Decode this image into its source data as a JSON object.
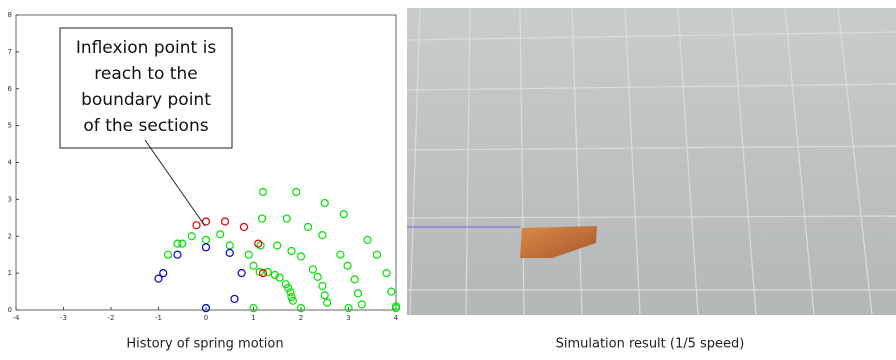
{
  "chart_data": {
    "type": "scatter",
    "xlim": [
      -4,
      4
    ],
    "ylim": [
      0,
      8
    ],
    "xticks": [
      -4,
      -3,
      -2,
      -1,
      0,
      1,
      2,
      3,
      4
    ],
    "yticks": [
      0,
      1,
      2,
      3,
      4,
      5,
      6,
      7,
      8
    ],
    "annotation": [
      "Inflexion point is",
      "reach to the",
      "boundary point",
      "of the sections"
    ],
    "series": [
      {
        "color": "#00e000",
        "x": [
          1.13,
          1.15,
          1.18,
          1.2,
          null,
          1.3,
          1.5,
          1.7,
          1.9,
          null,
          1.45,
          1.8,
          2.15,
          2.5,
          null,
          1.55,
          2.0,
          2.45,
          2.9,
          null,
          1.68,
          2.25,
          2.83,
          3.4,
          null,
          1.73,
          2.35,
          2.98,
          3.6,
          null,
          1.78,
          2.45,
          3.13,
          3.8,
          null,
          1.8,
          2.5,
          3.2,
          3.9,
          null,
          1.83,
          2.55,
          3.28,
          4.0,
          null,
          0,
          1,
          2,
          3,
          4,
          null,
          1.0,
          0.5,
          0,
          -0.5,
          -0.8,
          null,
          0.9,
          0.3,
          -0.3,
          -0.6
        ],
        "y": [
          1.03,
          1.75,
          2.48,
          3.2,
          null,
          1.03,
          1.75,
          2.48,
          3.2,
          null,
          0.95,
          1.6,
          2.25,
          2.9,
          null,
          0.88,
          1.45,
          2.03,
          2.6,
          null,
          0.7,
          1.1,
          1.5,
          1.9,
          null,
          0.6,
          0.9,
          1.2,
          1.5,
          null,
          0.48,
          0.65,
          0.83,
          1.0,
          null,
          0.35,
          0.4,
          0.45,
          0.5,
          null,
          0.25,
          0.2,
          0.15,
          0.1,
          null,
          0.05,
          0.05,
          0.05,
          0.05,
          0.05,
          null,
          1.2,
          1.75,
          1.9,
          1.8,
          1.5,
          null,
          1.5,
          2.05,
          2.0,
          1.8
        ]
      },
      {
        "color": "#e00000",
        "x": [
          1.2,
          1.1,
          0.8,
          0.4,
          0,
          -0.2
        ],
        "y": [
          1.0,
          1.8,
          2.25,
          2.4,
          2.4,
          2.3
        ]
      },
      {
        "color": "#0000d0",
        "x": [
          0,
          0.6,
          0.75,
          0.5,
          0,
          -0.6,
          -0.9,
          -1
        ],
        "y": [
          0.05,
          0.3,
          1.0,
          1.55,
          1.7,
          1.5,
          1.0,
          0.85
        ]
      }
    ]
  },
  "captions": [
    "History of spring motion",
    "Simulation result (1/5 speed)"
  ]
}
